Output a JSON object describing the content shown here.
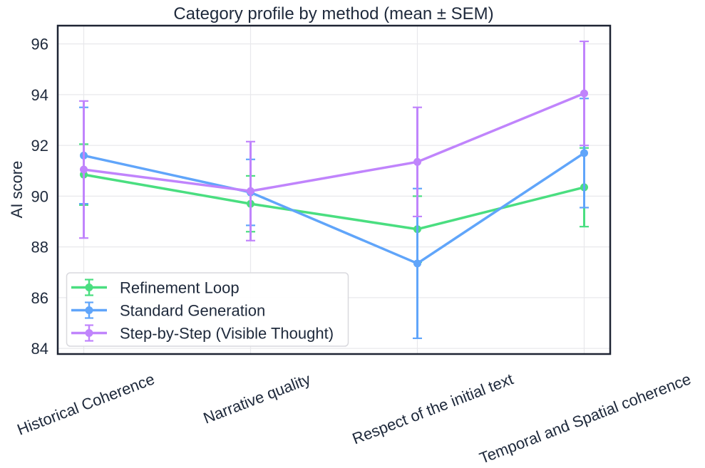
{
  "chart_data": {
    "type": "line",
    "title": "Category profile by method (mean ± SEM)",
    "xlabel": "",
    "ylabel": "AI score",
    "categories": [
      "Historical Coherence",
      "Narrative quality",
      "Respect of the initial text",
      "Temporal and Spatial coherence"
    ],
    "series": [
      {
        "name": "Refinement Loop",
        "color": "#4ade80",
        "values": [
          90.85,
          89.7,
          88.7,
          90.35
        ],
        "sem": [
          1.2,
          1.1,
          1.3,
          1.55
        ]
      },
      {
        "name": "Standard Generation",
        "color": "#60a5fa",
        "values": [
          91.6,
          90.15,
          87.35,
          91.7
        ],
        "sem": [
          1.9,
          1.3,
          2.95,
          2.15
        ]
      },
      {
        "name": "Step-by-Step (Visible Thought)",
        "color": "#c084fc",
        "values": [
          91.05,
          90.2,
          91.35,
          94.05
        ],
        "sem": [
          2.7,
          1.95,
          2.15,
          2.05
        ]
      }
    ],
    "yticks": [
      84,
      86,
      88,
      90,
      92,
      94,
      96
    ],
    "ylim": [
      83.78,
      96.72
    ],
    "grid": true,
    "legend_position": "lower left",
    "colors": {
      "text": "#1e293b",
      "grid": "#e8e8ec",
      "frame": "#1e2433",
      "background": "#ffffff",
      "legend_border": "#d9d9de",
      "legend_fill": "#ffffff"
    }
  }
}
